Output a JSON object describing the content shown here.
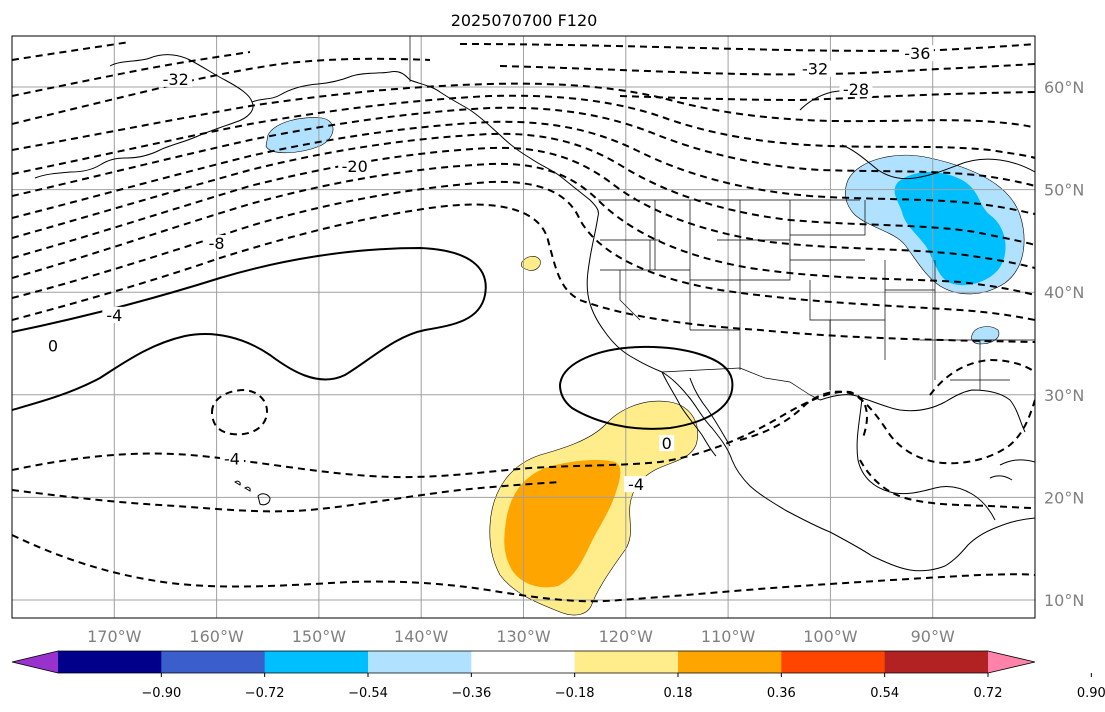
{
  "title": "2025070700 F120",
  "longitude_labels": [
    {
      "lon": -170,
      "text": "170°W"
    },
    {
      "lon": -160,
      "text": "160°W"
    },
    {
      "lon": -150,
      "text": "150°W"
    },
    {
      "lon": -140,
      "text": "140°W"
    },
    {
      "lon": -130,
      "text": "130°W"
    },
    {
      "lon": -120,
      "text": "120°W"
    },
    {
      "lon": -110,
      "text": "110°W"
    },
    {
      "lon": -100,
      "text": "100°W"
    },
    {
      "lon": -90,
      "text": "90°W"
    }
  ],
  "latitude_labels": [
    {
      "lat": 60,
      "text": "60°N"
    },
    {
      "lat": 50,
      "text": "50°N"
    },
    {
      "lat": 40,
      "text": "40°N"
    },
    {
      "lat": 30,
      "text": "30°N"
    },
    {
      "lat": 20,
      "text": "20°N"
    },
    {
      "lat": 10,
      "text": "10°N"
    }
  ],
  "map_extent": {
    "lon": [
      -180,
      -80
    ],
    "lat": [
      8,
      65
    ]
  },
  "colorbar": {
    "colors": [
      "#9932cc",
      "#00008b",
      "#3a5fcd",
      "#00bfff",
      "#b0e2ff",
      "#ffffff",
      "#ffec8b",
      "#ffa500",
      "#ff4500",
      "#b22222",
      "#ff82ab"
    ],
    "tick_labels": [
      "−0.90",
      "−0.72",
      "−0.54",
      "−0.36",
      "−0.18",
      "0.18",
      "0.36",
      "0.54",
      "0.72",
      "0.90"
    ],
    "extend": "both"
  },
  "contour_labels": [
    {
      "text": "-32",
      "lon": -164,
      "lat": 60.5
    },
    {
      "text": "-20",
      "lon": -146.5,
      "lat": 52
    },
    {
      "text": "-8",
      "lon": -160,
      "lat": 44.5
    },
    {
      "text": "-4",
      "lon": -170,
      "lat": 37.5
    },
    {
      "text": "0",
      "lon": -176,
      "lat": 34.5
    },
    {
      "text": "-4",
      "lon": -158.5,
      "lat": 23.5
    },
    {
      "text": "0",
      "lon": -116,
      "lat": 25
    },
    {
      "text": "-4",
      "lon": -119,
      "lat": 21
    },
    {
      "text": "-32",
      "lon": -101.5,
      "lat": 61.5
    },
    {
      "text": "-28",
      "lon": -97.5,
      "lat": 59.5
    },
    {
      "text": "-36",
      "lon": -91.5,
      "lat": 63
    }
  ]
}
